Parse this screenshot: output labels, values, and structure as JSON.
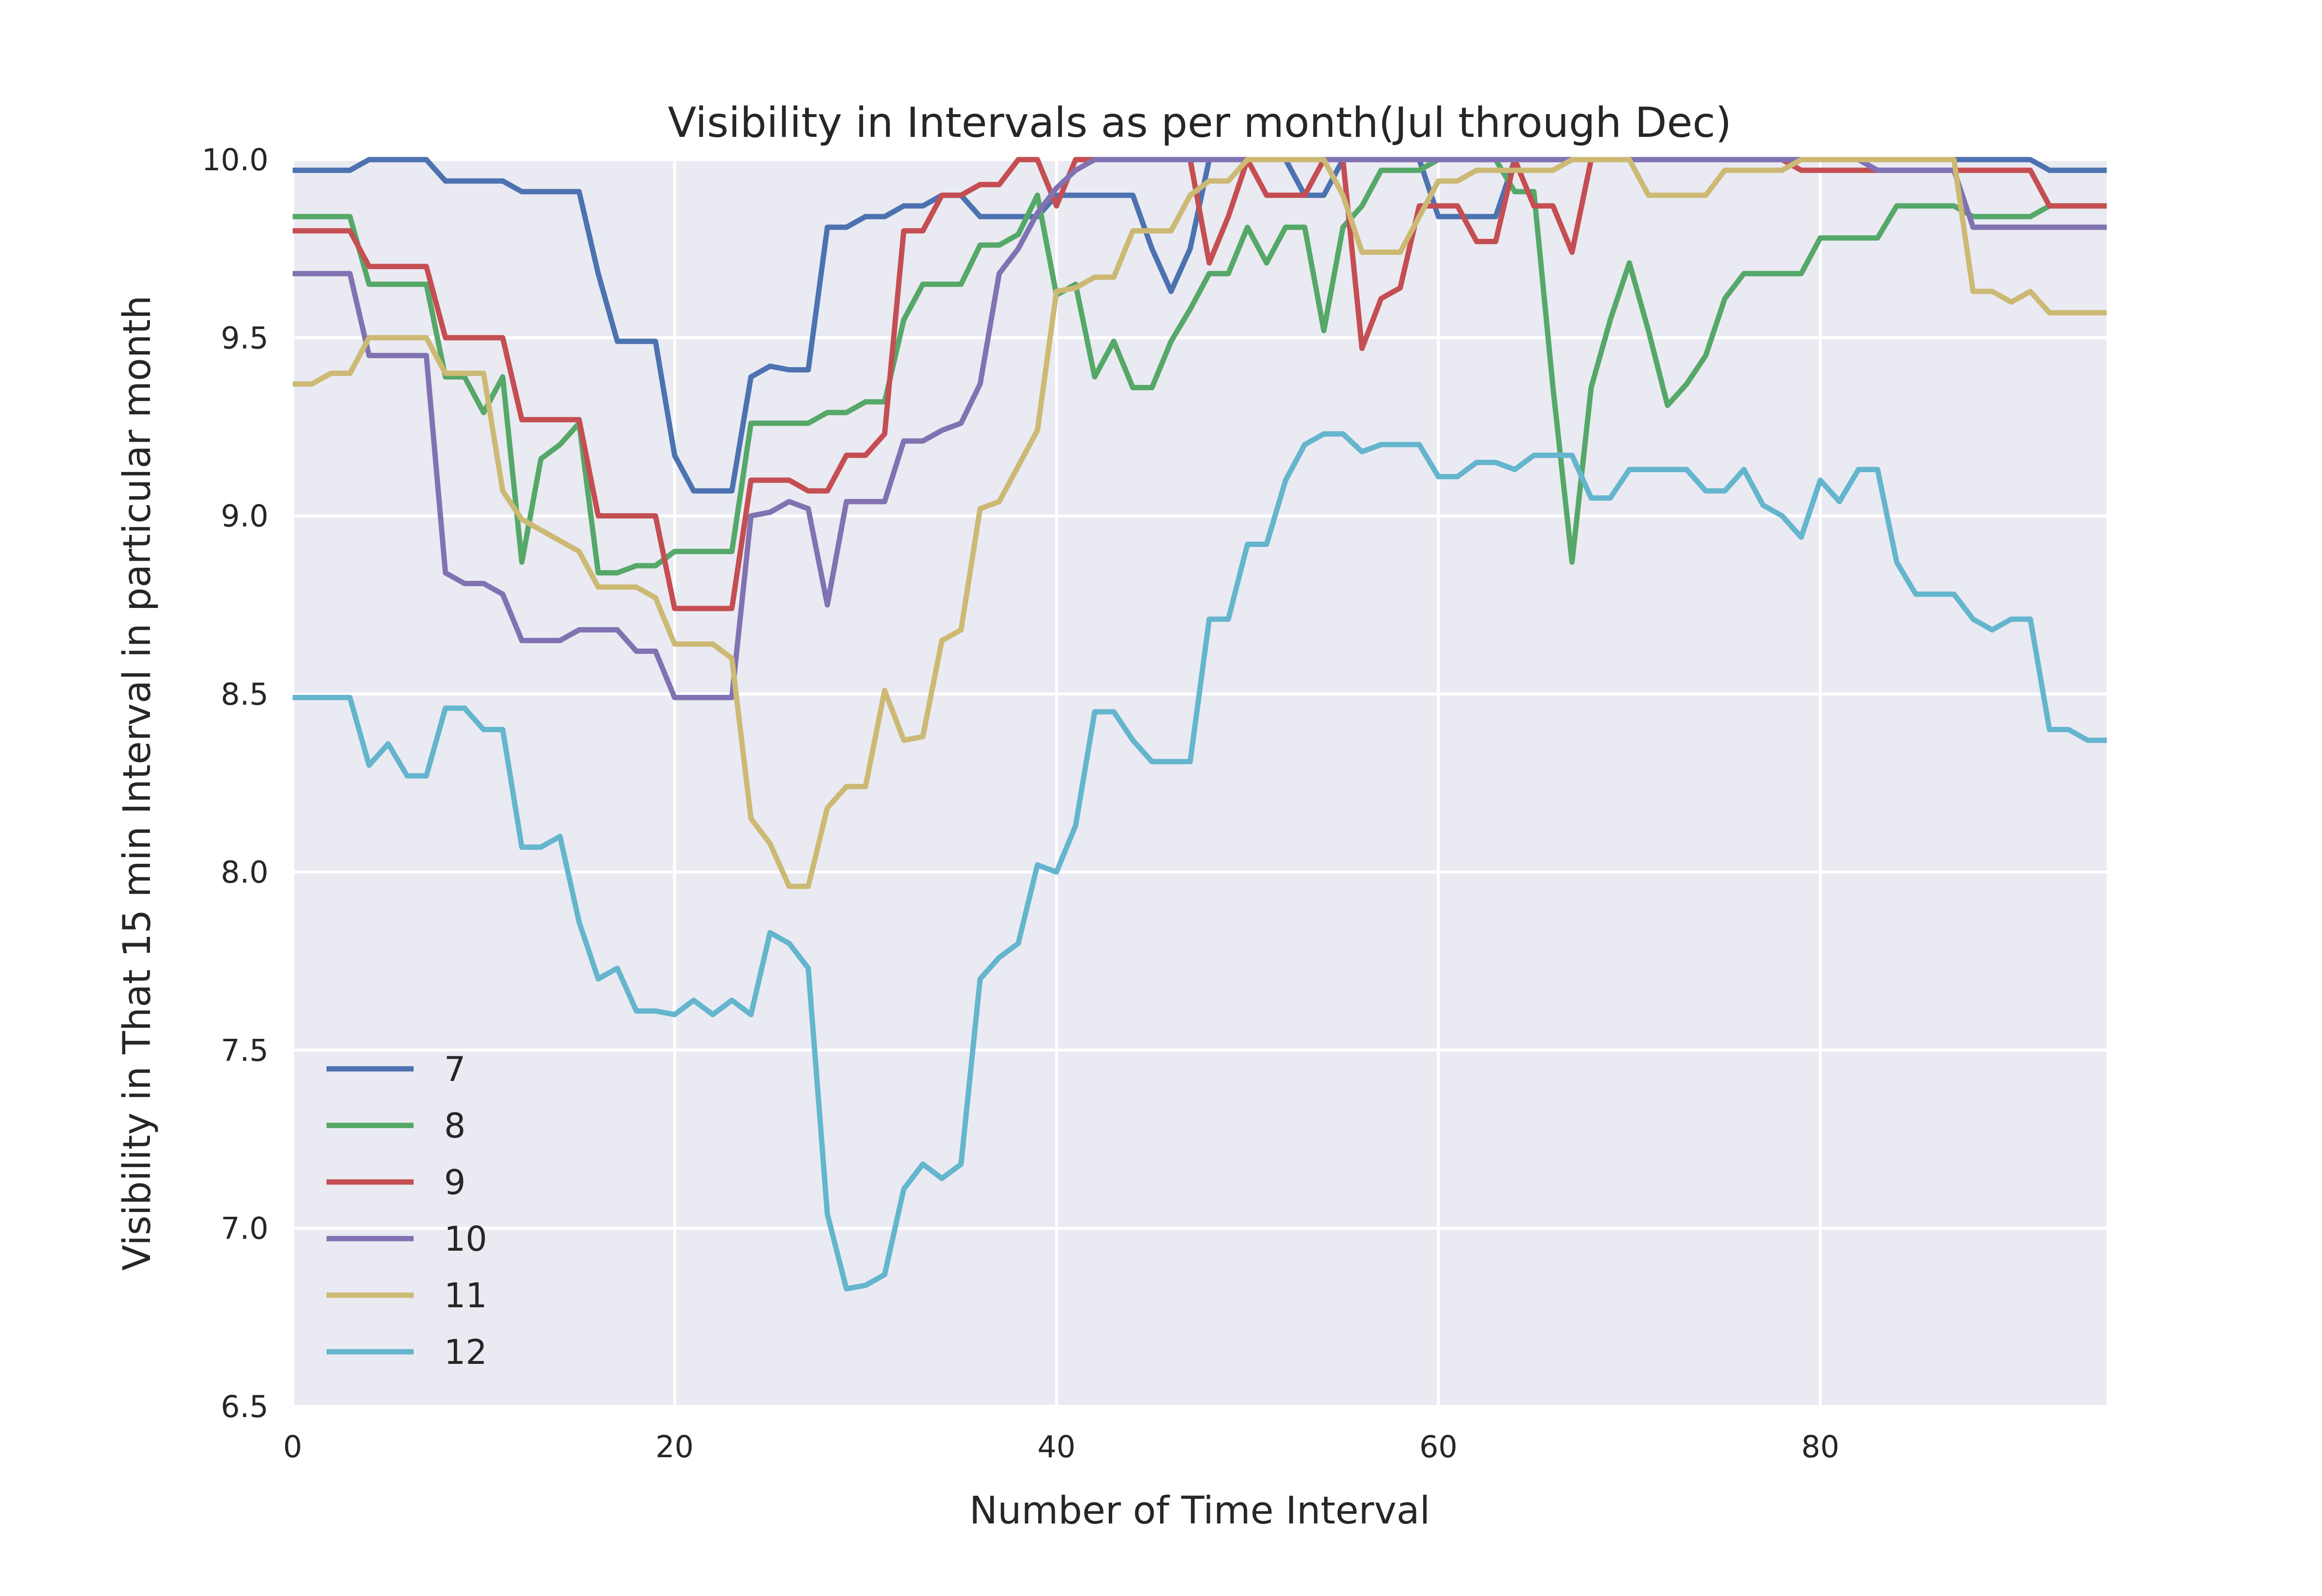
{
  "chart_data": {
    "type": "line",
    "title": "Visibility in Intervals as per month(Jul through Dec)",
    "xlabel": "Number of Time Interval",
    "ylabel": "Visibility in That 15 min Interval in particular month",
    "xlim": [
      0,
      95
    ],
    "ylim": [
      6.5,
      10.0
    ],
    "xticks": [
      0,
      20,
      40,
      60,
      80
    ],
    "yticks": [
      "6.5",
      "7.0",
      "7.5",
      "8.0",
      "8.5",
      "9.0",
      "9.5",
      "10.0"
    ],
    "grid": true,
    "background": "#EAEAF2",
    "legend_position": "lower-left",
    "series": [
      {
        "name": "7",
        "color": "#4C72B0",
        "values": [
          9.97,
          9.97,
          9.97,
          9.97,
          10.0,
          10.0,
          10.0,
          10.0,
          9.94,
          9.94,
          9.94,
          9.94,
          9.91,
          9.91,
          9.91,
          9.91,
          9.68,
          9.49,
          9.49,
          9.49,
          9.17,
          9.07,
          9.07,
          9.07,
          9.39,
          9.42,
          9.41,
          9.41,
          9.81,
          9.81,
          9.84,
          9.84,
          9.87,
          9.87,
          9.9,
          9.9,
          9.84,
          9.84,
          9.84,
          9.84,
          9.9,
          9.9,
          9.9,
          9.9,
          9.9,
          9.75,
          9.63,
          9.75,
          10.0,
          10.0,
          10.0,
          10.0,
          10.0,
          9.9,
          9.9,
          10.0,
          10.0,
          10.0,
          10.0,
          10.0,
          9.84,
          9.84,
          9.84,
          9.84,
          10.0,
          10.0,
          10.0,
          10.0,
          10.0,
          10.0,
          10.0,
          10.0,
          10.0,
          10.0,
          10.0,
          10.0,
          10.0,
          10.0,
          10.0,
          10.0,
          10.0,
          10.0,
          10.0,
          10.0,
          10.0,
          10.0,
          10.0,
          10.0,
          10.0,
          10.0,
          10.0,
          10.0,
          9.97,
          9.97,
          9.97,
          9.97
        ]
      },
      {
        "name": "8",
        "color": "#55A868",
        "values": [
          9.84,
          9.84,
          9.84,
          9.84,
          9.65,
          9.65,
          9.65,
          9.65,
          9.39,
          9.39,
          9.29,
          9.39,
          8.87,
          9.16,
          9.2,
          9.26,
          8.84,
          8.84,
          8.86,
          8.86,
          8.9,
          8.9,
          8.9,
          8.9,
          9.26,
          9.26,
          9.26,
          9.26,
          9.29,
          9.29,
          9.32,
          9.32,
          9.55,
          9.65,
          9.65,
          9.65,
          9.76,
          9.76,
          9.79,
          9.9,
          9.62,
          9.65,
          9.39,
          9.49,
          9.36,
          9.36,
          9.49,
          9.58,
          9.68,
          9.68,
          9.81,
          9.71,
          9.81,
          9.81,
          9.52,
          9.81,
          9.87,
          9.97,
          9.97,
          9.97,
          10.0,
          10.0,
          10.0,
          10.0,
          9.91,
          9.91,
          9.36,
          8.87,
          9.36,
          9.55,
          9.71,
          9.52,
          9.31,
          9.37,
          9.45,
          9.61,
          9.68,
          9.68,
          9.68,
          9.68,
          9.78,
          9.78,
          9.78,
          9.78,
          9.87,
          9.87,
          9.87,
          9.87,
          9.84,
          9.84,
          9.84,
          9.84,
          9.87,
          9.87,
          9.87,
          9.87
        ]
      },
      {
        "name": "9",
        "color": "#C44E52",
        "values": [
          9.8,
          9.8,
          9.8,
          9.8,
          9.7,
          9.7,
          9.7,
          9.7,
          9.5,
          9.5,
          9.5,
          9.5,
          9.27,
          9.27,
          9.27,
          9.27,
          9.0,
          9.0,
          9.0,
          9.0,
          8.74,
          8.74,
          8.74,
          8.74,
          9.1,
          9.1,
          9.1,
          9.07,
          9.07,
          9.17,
          9.17,
          9.23,
          9.8,
          9.8,
          9.9,
          9.9,
          9.93,
          9.93,
          10.0,
          10.0,
          9.87,
          10.0,
          10.0,
          10.0,
          10.0,
          10.0,
          10.0,
          10.0,
          9.71,
          9.84,
          10.0,
          9.9,
          9.9,
          9.9,
          10.0,
          10.0,
          9.47,
          9.61,
          9.64,
          9.87,
          9.87,
          9.87,
          9.77,
          9.77,
          10.0,
          9.87,
          9.87,
          9.74,
          10.0,
          10.0,
          10.0,
          10.0,
          10.0,
          10.0,
          10.0,
          10.0,
          10.0,
          10.0,
          10.0,
          9.97,
          9.97,
          9.97,
          9.97,
          9.97,
          9.97,
          9.97,
          9.97,
          9.97,
          9.97,
          9.97,
          9.97,
          9.97,
          9.87,
          9.87,
          9.87,
          9.87
        ]
      },
      {
        "name": "10",
        "color": "#8172B2",
        "values": [
          9.68,
          9.68,
          9.68,
          9.68,
          9.45,
          9.45,
          9.45,
          9.45,
          8.84,
          8.81,
          8.81,
          8.78,
          8.65,
          8.65,
          8.65,
          8.68,
          8.68,
          8.68,
          8.62,
          8.62,
          8.49,
          8.49,
          8.49,
          8.49,
          9.0,
          9.01,
          9.04,
          9.02,
          8.75,
          9.04,
          9.04,
          9.04,
          9.21,
          9.21,
          9.24,
          9.26,
          9.37,
          9.68,
          9.75,
          9.85,
          9.92,
          9.97,
          10.0,
          10.0,
          10.0,
          10.0,
          10.0,
          10.0,
          10.0,
          10.0,
          10.0,
          10.0,
          10.0,
          10.0,
          10.0,
          10.0,
          10.0,
          10.0,
          10.0,
          10.0,
          10.0,
          10.0,
          10.0,
          10.0,
          10.0,
          10.0,
          10.0,
          10.0,
          10.0,
          10.0,
          10.0,
          10.0,
          10.0,
          10.0,
          10.0,
          10.0,
          10.0,
          10.0,
          10.0,
          10.0,
          10.0,
          10.0,
          10.0,
          9.97,
          9.97,
          9.97,
          9.97,
          9.97,
          9.81,
          9.81,
          9.81,
          9.81,
          9.81,
          9.81,
          9.81,
          9.81
        ]
      },
      {
        "name": "11",
        "color": "#CCB974",
        "values": [
          9.37,
          9.37,
          9.4,
          9.4,
          9.5,
          9.5,
          9.5,
          9.5,
          9.4,
          9.4,
          9.4,
          9.07,
          8.99,
          8.96,
          8.93,
          8.9,
          8.8,
          8.8,
          8.8,
          8.77,
          8.64,
          8.64,
          8.64,
          8.6,
          8.15,
          8.08,
          7.96,
          7.96,
          8.18,
          8.24,
          8.24,
          8.51,
          8.37,
          8.38,
          8.65,
          8.68,
          9.02,
          9.04,
          9.14,
          9.24,
          9.63,
          9.64,
          9.67,
          9.67,
          9.8,
          9.8,
          9.8,
          9.9,
          9.94,
          9.94,
          10.0,
          10.0,
          10.0,
          10.0,
          10.0,
          9.9,
          9.74,
          9.74,
          9.74,
          9.84,
          9.94,
          9.94,
          9.97,
          9.97,
          9.97,
          9.97,
          9.97,
          10.0,
          10.0,
          10.0,
          10.0,
          9.9,
          9.9,
          9.9,
          9.9,
          9.97,
          9.97,
          9.97,
          9.97,
          10.0,
          10.0,
          10.0,
          10.0,
          10.0,
          10.0,
          10.0,
          10.0,
          10.0,
          9.63,
          9.63,
          9.6,
          9.63,
          9.57,
          9.57,
          9.57,
          9.57
        ]
      },
      {
        "name": "12",
        "color": "#64B5CD",
        "values": [
          8.49,
          8.49,
          8.49,
          8.49,
          8.3,
          8.36,
          8.27,
          8.27,
          8.46,
          8.46,
          8.4,
          8.4,
          8.07,
          8.07,
          8.1,
          7.86,
          7.7,
          7.73,
          7.61,
          7.61,
          7.6,
          7.64,
          7.6,
          7.64,
          7.6,
          7.83,
          7.8,
          7.73,
          7.04,
          6.83,
          6.84,
          6.87,
          7.11,
          7.18,
          7.14,
          7.18,
          7.7,
          7.76,
          7.8,
          8.02,
          8.0,
          8.13,
          8.45,
          8.45,
          8.37,
          8.31,
          8.31,
          8.31,
          8.71,
          8.71,
          8.92,
          8.92,
          9.1,
          9.2,
          9.23,
          9.23,
          9.18,
          9.2,
          9.2,
          9.2,
          9.11,
          9.11,
          9.15,
          9.15,
          9.13,
          9.17,
          9.17,
          9.17,
          9.05,
          9.05,
          9.13,
          9.13,
          9.13,
          9.13,
          9.07,
          9.07,
          9.13,
          9.03,
          9.0,
          8.94,
          9.1,
          9.04,
          9.13,
          9.13,
          8.87,
          8.78,
          8.78,
          8.78,
          8.71,
          8.68,
          8.71,
          8.71,
          8.4,
          8.4,
          8.37,
          8.37
        ]
      }
    ]
  }
}
